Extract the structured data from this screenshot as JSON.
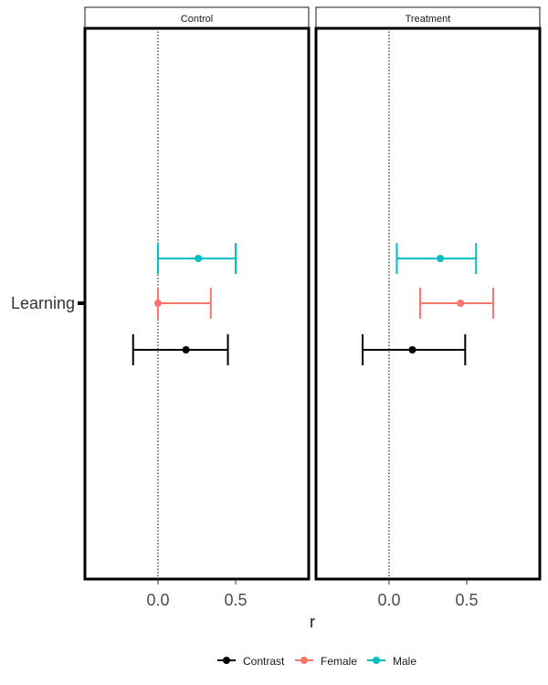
{
  "chart_data": {
    "type": "forest",
    "xlabel": "r",
    "x_ticks": [
      "0.0",
      "0.5"
    ],
    "x_tick_values": [
      0,
      0.5
    ],
    "xlim": [
      -0.47,
      0.97
    ],
    "y_categories": [
      "Learning"
    ],
    "reference_line_x": 0,
    "panels": [
      {
        "title": "Control",
        "series": [
          {
            "name": "Contrast",
            "estimate": 0.18,
            "lower": -0.16,
            "upper": 0.45
          },
          {
            "name": "Female",
            "estimate": 0.0,
            "lower": 0.0,
            "upper": 0.34
          },
          {
            "name": "Male",
            "estimate": 0.26,
            "lower": 0.0,
            "upper": 0.5
          }
        ]
      },
      {
        "title": "Treatment",
        "series": [
          {
            "name": "Contrast",
            "estimate": 0.15,
            "lower": -0.17,
            "upper": 0.49
          },
          {
            "name": "Female",
            "estimate": 0.46,
            "lower": 0.2,
            "upper": 0.67
          },
          {
            "name": "Male",
            "estimate": 0.33,
            "lower": 0.05,
            "upper": 0.56
          }
        ]
      }
    ],
    "legend": {
      "position": "bottom",
      "entries": [
        {
          "name": "Contrast",
          "color": "#000000"
        },
        {
          "name": "Female",
          "color": "#F8766D"
        },
        {
          "name": "Male",
          "color": "#00BFC4"
        }
      ]
    },
    "grid": false
  }
}
